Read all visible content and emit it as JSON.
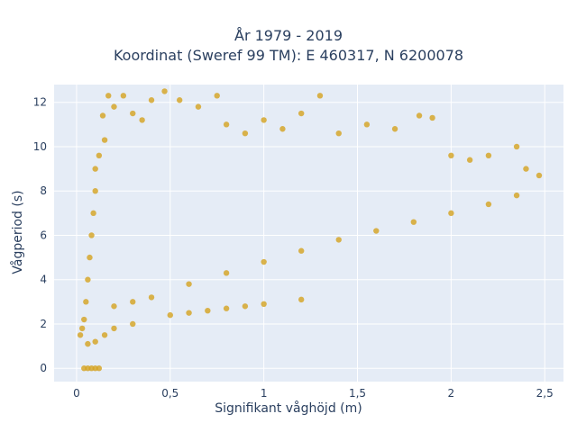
{
  "chart_data": {
    "type": "scatter",
    "title_line1": "År 1979 - 2019",
    "title_line2": "Koordinat (Sweref 99 TM): E 460317, N 6200078",
    "xlabel": "Signifikant våghöjd (m)",
    "ylabel": "Vågperiod (s)",
    "xlim": [
      -0.12,
      2.6
    ],
    "ylim": [
      -0.6,
      12.8
    ],
    "x_ticks": [
      0,
      0.5,
      1,
      1.5,
      2,
      2.5
    ],
    "x_tick_labels": [
      "0",
      "0,5",
      "1",
      "1,5",
      "2",
      "2,5"
    ],
    "y_ticks": [
      0,
      2,
      4,
      6,
      8,
      10,
      12
    ],
    "y_tick_labels": [
      "0",
      "2",
      "4",
      "6",
      "8",
      "10",
      "12"
    ],
    "grid": true,
    "marker_color": "#D4A21F",
    "plot_bg": "#E5ECF6",
    "series": [
      {
        "points": [
          [
            0.02,
            1.5
          ],
          [
            0.03,
            1.8
          ],
          [
            0.04,
            2.2
          ],
          [
            0.05,
            3.0
          ],
          [
            0.06,
            4.0
          ],
          [
            0.07,
            5.0
          ],
          [
            0.08,
            6.0
          ],
          [
            0.09,
            7.0
          ],
          [
            0.1,
            8.0
          ],
          [
            0.1,
            9.0
          ],
          [
            0.12,
            9.6
          ],
          [
            0.15,
            10.3
          ],
          [
            0.14,
            11.4
          ],
          [
            0.17,
            12.3
          ],
          [
            0.2,
            11.8
          ],
          [
            0.25,
            12.3
          ],
          [
            0.3,
            11.5
          ],
          [
            0.35,
            11.2
          ],
          [
            0.4,
            12.1
          ],
          [
            0.47,
            12.5
          ],
          [
            0.55,
            12.1
          ],
          [
            0.65,
            11.8
          ],
          [
            0.75,
            12.3
          ],
          [
            0.8,
            11.0
          ],
          [
            0.9,
            10.6
          ],
          [
            1.0,
            11.2
          ],
          [
            1.1,
            10.8
          ],
          [
            1.2,
            11.5
          ],
          [
            1.3,
            12.3
          ],
          [
            1.4,
            10.6
          ],
          [
            1.55,
            11.0
          ],
          [
            1.7,
            10.8
          ],
          [
            1.83,
            11.4
          ],
          [
            1.9,
            11.3
          ],
          [
            2.0,
            9.6
          ],
          [
            2.1,
            9.4
          ],
          [
            2.2,
            9.6
          ],
          [
            2.35,
            10.0
          ],
          [
            2.4,
            9.0
          ],
          [
            2.47,
            8.7
          ],
          [
            2.35,
            7.8
          ],
          [
            2.2,
            7.4
          ],
          [
            2.0,
            7.0
          ],
          [
            1.8,
            6.6
          ],
          [
            1.6,
            6.2
          ],
          [
            1.4,
            5.8
          ],
          [
            1.2,
            5.3
          ],
          [
            1.0,
            4.8
          ],
          [
            0.8,
            4.3
          ],
          [
            0.6,
            3.8
          ],
          [
            0.4,
            3.2
          ],
          [
            0.3,
            3.0
          ],
          [
            0.2,
            2.8
          ],
          [
            0.5,
            2.4
          ],
          [
            0.6,
            2.5
          ],
          [
            0.7,
            2.6
          ],
          [
            0.8,
            2.7
          ],
          [
            0.9,
            2.8
          ],
          [
            1.0,
            2.9
          ],
          [
            0.3,
            2.0
          ],
          [
            0.2,
            1.8
          ],
          [
            0.15,
            1.5
          ],
          [
            0.1,
            1.2
          ],
          [
            0.06,
            1.1
          ],
          [
            1.2,
            3.1
          ],
          [
            0.04,
            0
          ],
          [
            0.06,
            0
          ],
          [
            0.08,
            0
          ],
          [
            0.1,
            0
          ],
          [
            0.12,
            0
          ]
        ]
      }
    ]
  }
}
